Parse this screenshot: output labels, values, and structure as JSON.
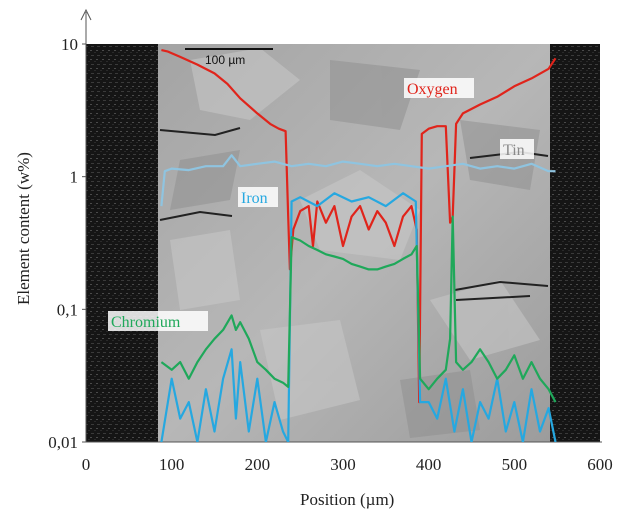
{
  "chart_data": {
    "type": "line",
    "title": "",
    "xlabel": "Position (µm)",
    "ylabel": "Element content (w%)",
    "xlim": [
      0,
      600
    ],
    "ylim": [
      0.01,
      10
    ],
    "y_scale": "log",
    "x_ticks": [
      0,
      100,
      200,
      300,
      400,
      500,
      600
    ],
    "x_tick_labels": [
      "0",
      "100",
      "200",
      "300",
      "400",
      "500",
      "600"
    ],
    "y_ticks": [
      0.01,
      0.1,
      1,
      10
    ],
    "y_tick_labels": [
      "0,01",
      "0,1",
      "1",
      "10"
    ],
    "background": "SEM micrograph of oxidized cross-section (grey grains, dark resin on both sides)",
    "scale_bar_label": "100 µm",
    "series": [
      {
        "name": "Oxygen",
        "color": "#e0241b",
        "x": [
          88,
          95,
          110,
          130,
          150,
          165,
          180,
          200,
          215,
          225,
          233,
          236,
          238,
          242,
          250,
          260,
          265,
          270,
          280,
          290,
          300,
          310,
          320,
          330,
          340,
          350,
          360,
          370,
          380,
          386,
          389,
          392,
          400,
          410,
          420,
          425,
          428,
          432,
          440,
          460,
          480,
          500,
          520,
          540,
          548
        ],
        "y": [
          9.0,
          8.8,
          8.0,
          7.0,
          6.0,
          5.0,
          3.9,
          3.0,
          2.5,
          2.3,
          2.2,
          0.5,
          0.2,
          0.4,
          0.55,
          0.6,
          0.3,
          0.65,
          0.45,
          0.6,
          0.3,
          0.5,
          0.6,
          0.4,
          0.55,
          0.45,
          0.3,
          0.5,
          0.6,
          0.4,
          0.02,
          2.1,
          2.3,
          2.4,
          2.4,
          0.45,
          0.5,
          2.5,
          3.0,
          3.5,
          4.0,
          4.8,
          5.5,
          6.5,
          7.8
        ]
      },
      {
        "name": "Tin",
        "color": "#8fc4e0",
        "x": [
          88,
          92,
          100,
          120,
          140,
          160,
          170,
          180,
          200,
          220,
          240,
          260,
          280,
          300,
          320,
          340,
          360,
          380,
          400,
          420,
          440,
          460,
          480,
          500,
          520,
          540,
          548
        ],
        "y": [
          0.6,
          1.1,
          1.15,
          1.12,
          1.2,
          1.2,
          1.45,
          1.2,
          1.25,
          1.3,
          1.2,
          1.25,
          1.2,
          1.3,
          1.25,
          1.2,
          1.25,
          1.2,
          1.15,
          1.2,
          1.25,
          1.15,
          1.2,
          1.15,
          1.25,
          1.1,
          1.1
        ]
      },
      {
        "name": "Iron",
        "color": "#26a8e0",
        "x": [
          88,
          100,
          110,
          120,
          130,
          140,
          150,
          160,
          170,
          175,
          180,
          190,
          200,
          210,
          220,
          230,
          236,
          240,
          250,
          270,
          290,
          310,
          330,
          350,
          370,
          385,
          390,
          400,
          410,
          420,
          430,
          440,
          450,
          460,
          470,
          480,
          490,
          500,
          510,
          520,
          530,
          540,
          548
        ],
        "y": [
          0.01,
          0.03,
          0.015,
          0.02,
          0.01,
          0.025,
          0.012,
          0.03,
          0.05,
          0.015,
          0.04,
          0.012,
          0.03,
          0.01,
          0.02,
          0.012,
          0.01,
          0.65,
          0.7,
          0.6,
          0.75,
          0.65,
          0.7,
          0.6,
          0.75,
          0.65,
          0.02,
          0.02,
          0.015,
          0.03,
          0.012,
          0.025,
          0.01,
          0.02,
          0.015,
          0.03,
          0.012,
          0.02,
          0.01,
          0.025,
          0.012,
          0.018,
          0.01
        ]
      },
      {
        "name": "Chromium",
        "color": "#1fa85a",
        "x": [
          88,
          100,
          110,
          120,
          130,
          140,
          150,
          160,
          170,
          175,
          180,
          190,
          200,
          210,
          220,
          230,
          236,
          240,
          250,
          260,
          270,
          280,
          290,
          300,
          310,
          320,
          330,
          340,
          350,
          360,
          370,
          380,
          386,
          390,
          400,
          410,
          420,
          425,
          428,
          432,
          440,
          450,
          460,
          470,
          480,
          490,
          500,
          510,
          520,
          530,
          540,
          548
        ],
        "y": [
          0.04,
          0.035,
          0.04,
          0.03,
          0.04,
          0.05,
          0.06,
          0.07,
          0.09,
          0.07,
          0.08,
          0.06,
          0.04,
          0.035,
          0.03,
          0.028,
          0.026,
          0.35,
          0.33,
          0.3,
          0.28,
          0.26,
          0.25,
          0.24,
          0.22,
          0.21,
          0.2,
          0.2,
          0.21,
          0.22,
          0.24,
          0.26,
          0.3,
          0.03,
          0.025,
          0.03,
          0.035,
          0.06,
          0.5,
          0.04,
          0.035,
          0.04,
          0.05,
          0.04,
          0.03,
          0.035,
          0.045,
          0.03,
          0.04,
          0.03,
          0.025,
          0.02
        ]
      }
    ]
  }
}
